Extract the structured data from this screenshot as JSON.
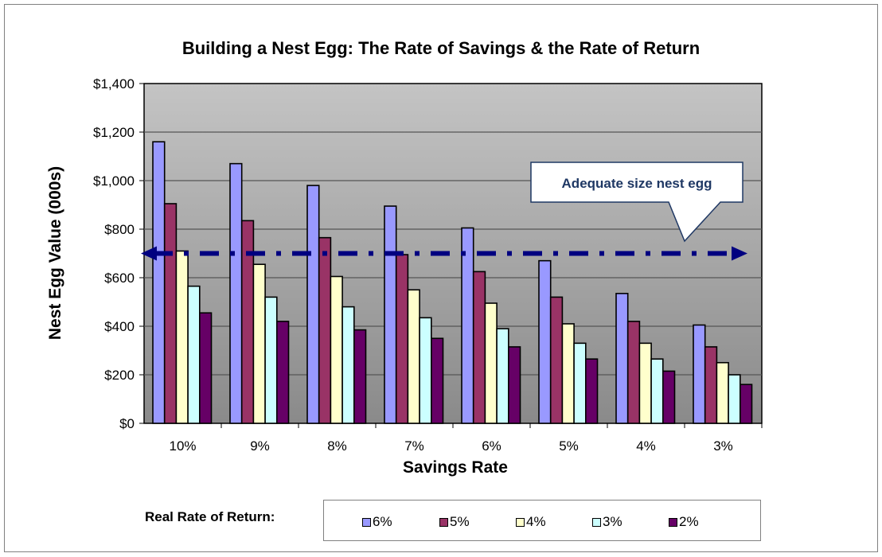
{
  "chart_data": {
    "type": "bar",
    "title": "Building a Nest Egg:  The Rate of Savings & the Rate of Return",
    "xlabel": "Savings Rate",
    "ylabel": "Nest Egg Value (000s)",
    "ylim": [
      0,
      1400
    ],
    "yticks": [
      0,
      200,
      400,
      600,
      800,
      1000,
      1200,
      1400
    ],
    "ytick_labels": [
      "$0",
      "$200",
      "$400",
      "$600",
      "$800",
      "$1,000",
      "$1,200",
      "$1,400"
    ],
    "grid": true,
    "categories": [
      "10%",
      "9%",
      "8%",
      "7%",
      "6%",
      "5%",
      "4%",
      "3%"
    ],
    "legend_title": "Real Rate of Return:",
    "legend_position": "bottom",
    "series": [
      {
        "name": "6%",
        "color": "#9999FF",
        "values": [
          1160,
          1070,
          980,
          895,
          805,
          670,
          535,
          405
        ]
      },
      {
        "name": "5%",
        "color": "#993366",
        "values": [
          905,
          835,
          765,
          695,
          625,
          520,
          420,
          315
        ]
      },
      {
        "name": "4%",
        "color": "#FFFFCC",
        "values": [
          710,
          655,
          605,
          550,
          495,
          410,
          330,
          250
        ]
      },
      {
        "name": "3%",
        "color": "#CCFFFF",
        "values": [
          565,
          520,
          480,
          435,
          390,
          330,
          265,
          200
        ]
      },
      {
        "name": "2%",
        "color": "#660066",
        "values": [
          455,
          420,
          385,
          350,
          315,
          265,
          215,
          160
        ]
      }
    ],
    "annotations": [
      {
        "type": "reference-line",
        "value": 700,
        "color": "#000080",
        "style": "dash-dot",
        "arrows": "both"
      },
      {
        "type": "callout",
        "text": "Adequate size nest egg",
        "color": "#1F3864"
      }
    ]
  }
}
